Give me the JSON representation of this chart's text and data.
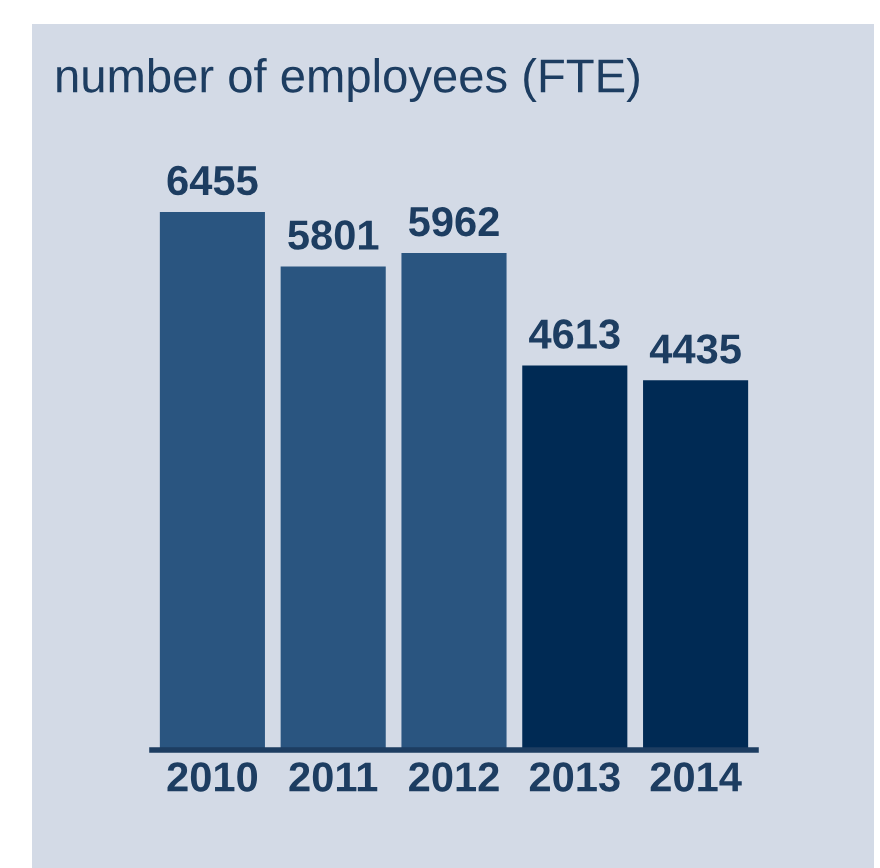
{
  "chart_data": {
    "type": "bar",
    "title": "number of employees (FTE)",
    "categories": [
      "2010",
      "2011",
      "2012",
      "2013",
      "2014"
    ],
    "values": [
      6455,
      5801,
      5962,
      4613,
      4435
    ],
    "colors": [
      "#2a5580",
      "#2a5580",
      "#2a5580",
      "#002a54",
      "#002a54"
    ],
    "data_labels": true,
    "grid": false,
    "legend": false
  }
}
